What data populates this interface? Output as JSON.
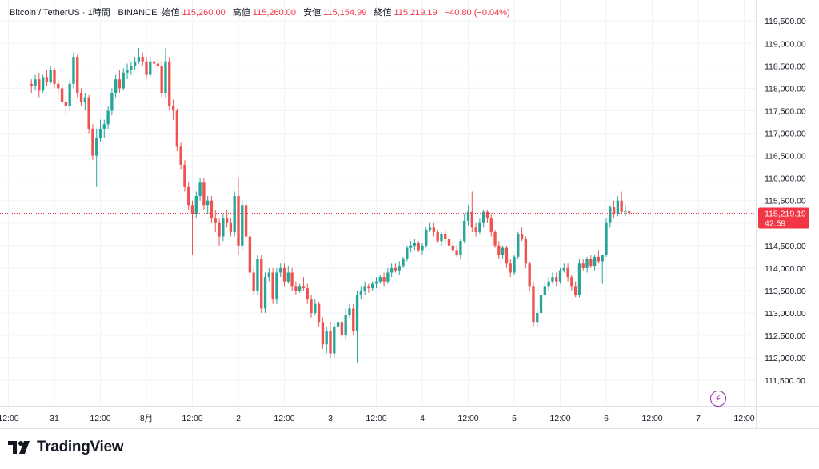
{
  "header": {
    "symbol": "Bitcoin / TetherUS · 1時間 · BINANCE",
    "open_label": "始値",
    "open": "115,260.00",
    "high_label": "高値",
    "high": "115,260.00",
    "low_label": "安値",
    "low": "115,154.99",
    "close_label": "終値",
    "close": "115,219.19",
    "change": "−40.80 (−0.04%)"
  },
  "price_label": {
    "price": "115,219.19",
    "countdown": "42:59"
  },
  "brand": {
    "name": "TradingView"
  },
  "colors": {
    "up": "#26a69a",
    "down": "#ef5350",
    "grid": "#f0f3fa",
    "price_line": "#f23645"
  },
  "chart_data": {
    "type": "candlestick",
    "title": "Bitcoin / TetherUS · 1時間 · BINANCE",
    "ylim": [
      111200,
      119700
    ],
    "yticks": [
      111500,
      112000,
      112500,
      113000,
      113500,
      114000,
      114500,
      115000,
      115500,
      116000,
      116500,
      117000,
      117500,
      118000,
      118500,
      119000,
      119500
    ],
    "ytick_labels": [
      "111,500.00",
      "112,000.00",
      "112,500.00",
      "113,000.00",
      "113,500.00",
      "114,000.00",
      "114,500.00",
      "115,000.00",
      "115,500.00",
      "116,000.00",
      "116,500.00",
      "117,000.00",
      "117,500.00",
      "118,000.00",
      "118,500.00",
      "119,000.00",
      "119,500.00"
    ],
    "xticks": [
      {
        "label": "12:00",
        "hour": -12
      },
      {
        "label": "31",
        "hour": 0
      },
      {
        "label": "12:00",
        "hour": 12
      },
      {
        "label": "8月",
        "hour": 24
      },
      {
        "label": "12:00",
        "hour": 36
      },
      {
        "label": "2",
        "hour": 48
      },
      {
        "label": "12:00",
        "hour": 60
      },
      {
        "label": "3",
        "hour": 72
      },
      {
        "label": "12:00",
        "hour": 84
      },
      {
        "label": "4",
        "hour": 96
      },
      {
        "label": "12:00",
        "hour": 108
      },
      {
        "label": "5",
        "hour": 120
      },
      {
        "label": "12:00",
        "hour": 132
      },
      {
        "label": "6",
        "hour": 144
      },
      {
        "label": "12:00",
        "hour": 156
      },
      {
        "label": "7",
        "hour": 168
      },
      {
        "label": "12:00",
        "hour": 180
      }
    ],
    "x_start_hour": -6,
    "current_price": 115219.19,
    "candles": [
      [
        118100,
        118200,
        117900,
        118050
      ],
      [
        118050,
        118300,
        117950,
        118200
      ],
      [
        118200,
        118350,
        117800,
        117950
      ],
      [
        117950,
        118300,
        117900,
        118250
      ],
      [
        118250,
        118400,
        118050,
        118150
      ],
      [
        118150,
        118500,
        118100,
        118400
      ],
      [
        118400,
        118450,
        118000,
        118100
      ],
      [
        118100,
        118200,
        117900,
        118000
      ],
      [
        118000,
        118100,
        117600,
        117700
      ],
      [
        117700,
        117900,
        117400,
        117600
      ],
      [
        117600,
        118200,
        117500,
        118100
      ],
      [
        118100,
        118800,
        118000,
        118700
      ],
      [
        118700,
        118750,
        117800,
        117900
      ],
      [
        117900,
        118000,
        117600,
        117700
      ],
      [
        117700,
        117900,
        117500,
        117800
      ],
      [
        117800,
        117850,
        117000,
        117100
      ],
      [
        117100,
        117200,
        116400,
        116500
      ],
      [
        116500,
        117100,
        115800,
        116900
      ],
      [
        116900,
        117300,
        116800,
        117100
      ],
      [
        117100,
        117300,
        116900,
        117200
      ],
      [
        117200,
        117600,
        117100,
        117500
      ],
      [
        117500,
        118000,
        117400,
        117900
      ],
      [
        117900,
        118300,
        117800,
        118200
      ],
      [
        118200,
        118400,
        117900,
        118000
      ],
      [
        118000,
        118450,
        117950,
        118350
      ],
      [
        118350,
        118550,
        118200,
        118400
      ],
      [
        118400,
        118600,
        118300,
        118500
      ],
      [
        118500,
        118700,
        118400,
        118600
      ],
      [
        118600,
        118900,
        118550,
        118700
      ],
      [
        118700,
        118800,
        118500,
        118600
      ],
      [
        118600,
        118700,
        118200,
        118300
      ],
      [
        118300,
        118700,
        118250,
        118600
      ],
      [
        118600,
        118800,
        118400,
        118550
      ],
      [
        118550,
        118650,
        118300,
        118500
      ],
      [
        118500,
        118600,
        117800,
        117900
      ],
      [
        117900,
        118900,
        117800,
        118600
      ],
      [
        118600,
        118700,
        117500,
        117600
      ],
      [
        117600,
        117750,
        117300,
        117500
      ],
      [
        117500,
        117550,
        116600,
        116700
      ],
      [
        116700,
        116800,
        116200,
        116300
      ],
      [
        116300,
        116400,
        115700,
        115800
      ],
      [
        115800,
        115900,
        115300,
        115400
      ],
      [
        115400,
        115500,
        114300,
        115200
      ],
      [
        115200,
        115700,
        115100,
        115600
      ],
      [
        115600,
        116000,
        115500,
        115900
      ],
      [
        115900,
        116000,
        115300,
        115400
      ],
      [
        115400,
        115600,
        115200,
        115500
      ],
      [
        115500,
        115600,
        115000,
        115100
      ],
      [
        115100,
        115300,
        114800,
        115000
      ],
      [
        115000,
        115100,
        114500,
        114700
      ],
      [
        114700,
        115200,
        114600,
        115100
      ],
      [
        115100,
        115300,
        114900,
        115000
      ],
      [
        115000,
        115100,
        114700,
        114800
      ],
      [
        114800,
        115700,
        114700,
        115600
      ],
      [
        115600,
        116000,
        114300,
        114500
      ],
      [
        114500,
        115500,
        114400,
        115400
      ],
      [
        115400,
        115500,
        114600,
        114700
      ],
      [
        114700,
        114800,
        113800,
        113900
      ],
      [
        113900,
        114000,
        113400,
        113500
      ],
      [
        113500,
        114300,
        113400,
        114200
      ],
      [
        114200,
        114300,
        113000,
        113100
      ],
      [
        113100,
        113900,
        113000,
        113800
      ],
      [
        113800,
        114000,
        113700,
        113900
      ],
      [
        113900,
        114000,
        113200,
        113300
      ],
      [
        113300,
        114000,
        113200,
        113900
      ],
      [
        113900,
        114100,
        113800,
        114000
      ],
      [
        114000,
        114100,
        113600,
        113700
      ],
      [
        113700,
        114050,
        113650,
        113900
      ],
      [
        113900,
        114000,
        113500,
        113600
      ],
      [
        113600,
        113700,
        113400,
        113500
      ],
      [
        113500,
        113650,
        113450,
        113600
      ],
      [
        113600,
        113800,
        113500,
        113550
      ],
      [
        113550,
        113650,
        113200,
        113300
      ],
      [
        113300,
        113400,
        112900,
        113000
      ],
      [
        113000,
        113300,
        112950,
        113200
      ],
      [
        113200,
        113250,
        112700,
        112800
      ],
      [
        112800,
        112900,
        112200,
        112300
      ],
      [
        112300,
        112700,
        112100,
        112600
      ],
      [
        112600,
        112800,
        112000,
        112100
      ],
      [
        112100,
        112800,
        112000,
        112700
      ],
      [
        112700,
        112900,
        112600,
        112800
      ],
      [
        112800,
        112850,
        112400,
        112500
      ],
      [
        112500,
        113100,
        112400,
        112950
      ],
      [
        112950,
        113200,
        112900,
        113100
      ],
      [
        113100,
        113200,
        112500,
        112600
      ],
      [
        112600,
        113500,
        111900,
        113400
      ],
      [
        113400,
        113600,
        113300,
        113500
      ],
      [
        113500,
        113700,
        113400,
        113600
      ],
      [
        113600,
        113650,
        113450,
        113550
      ],
      [
        113550,
        113700,
        113500,
        113650
      ],
      [
        113650,
        113800,
        113550,
        113700
      ],
      [
        113700,
        113850,
        113650,
        113800
      ],
      [
        113800,
        113900,
        113600,
        113700
      ],
      [
        113700,
        114000,
        113650,
        113900
      ],
      [
        113900,
        114100,
        113800,
        114000
      ],
      [
        114000,
        114100,
        113900,
        113950
      ],
      [
        113950,
        114150,
        113850,
        114050
      ],
      [
        114050,
        114250,
        114000,
        114200
      ],
      [
        114200,
        114500,
        114150,
        114450
      ],
      [
        114450,
        114600,
        114350,
        114500
      ],
      [
        114500,
        114650,
        114400,
        114550
      ],
      [
        114550,
        114600,
        114350,
        114400
      ],
      [
        114400,
        114550,
        114300,
        114500
      ],
      [
        114500,
        114900,
        114450,
        114850
      ],
      [
        114850,
        115000,
        114800,
        114900
      ],
      [
        114900,
        115000,
        114700,
        114800
      ],
      [
        114800,
        114850,
        114550,
        114600
      ],
      [
        114600,
        114800,
        114500,
        114750
      ],
      [
        114750,
        114850,
        114550,
        114650
      ],
      [
        114650,
        114750,
        114450,
        114500
      ],
      [
        114500,
        114600,
        114350,
        114400
      ],
      [
        114400,
        114500,
        114250,
        114300
      ],
      [
        114300,
        114650,
        114200,
        114600
      ],
      [
        114600,
        115200,
        114550,
        115050
      ],
      [
        115050,
        115400,
        114950,
        115250
      ],
      [
        115250,
        115700,
        114800,
        114900
      ],
      [
        114900,
        115000,
        114700,
        114800
      ],
      [
        114800,
        115100,
        114750,
        115000
      ],
      [
        115000,
        115300,
        114900,
        115250
      ],
      [
        115250,
        115300,
        115000,
        115100
      ],
      [
        115100,
        115200,
        114700,
        114800
      ],
      [
        114800,
        114850,
        114450,
        114500
      ],
      [
        114500,
        114600,
        114200,
        114300
      ],
      [
        114300,
        114500,
        114200,
        114450
      ],
      [
        114450,
        114500,
        114000,
        114100
      ],
      [
        114100,
        114200,
        113800,
        113900
      ],
      [
        113900,
        114300,
        113850,
        114250
      ],
      [
        114250,
        114800,
        114200,
        114750
      ],
      [
        114750,
        114900,
        114600,
        114650
      ],
      [
        114650,
        114700,
        114000,
        114100
      ],
      [
        114100,
        114150,
        113500,
        113600
      ],
      [
        113600,
        113700,
        112700,
        112800
      ],
      [
        112800,
        113100,
        112700,
        113000
      ],
      [
        113000,
        113500,
        112950,
        113400
      ],
      [
        113400,
        113700,
        113350,
        113600
      ],
      [
        113600,
        113800,
        113500,
        113700
      ],
      [
        113700,
        113900,
        113650,
        113800
      ],
      [
        113800,
        113900,
        113600,
        113700
      ],
      [
        113700,
        114000,
        113650,
        113950
      ],
      [
        113950,
        114100,
        113900,
        114000
      ],
      [
        114000,
        114100,
        113700,
        113800
      ],
      [
        113800,
        113850,
        113500,
        113600
      ],
      [
        113600,
        113700,
        113350,
        113400
      ],
      [
        113400,
        114200,
        113350,
        114100
      ],
      [
        114100,
        114200,
        113950,
        114000
      ],
      [
        114000,
        114250,
        113900,
        114200
      ],
      [
        114200,
        114300,
        114000,
        114050
      ],
      [
        114050,
        114300,
        113950,
        114250
      ],
      [
        114250,
        114400,
        114100,
        114150
      ],
      [
        114150,
        114300,
        113650,
        114300
      ],
      [
        114300,
        115100,
        114250,
        115000
      ],
      [
        115000,
        115400,
        114900,
        115350
      ],
      [
        115350,
        115500,
        115100,
        115200
      ],
      [
        115200,
        115600,
        115150,
        115500
      ],
      [
        115500,
        115700,
        115200,
        115250
      ],
      [
        115250,
        115400,
        115150,
        115260
      ],
      [
        115260,
        115260,
        115154.99,
        115219.19
      ]
    ]
  }
}
